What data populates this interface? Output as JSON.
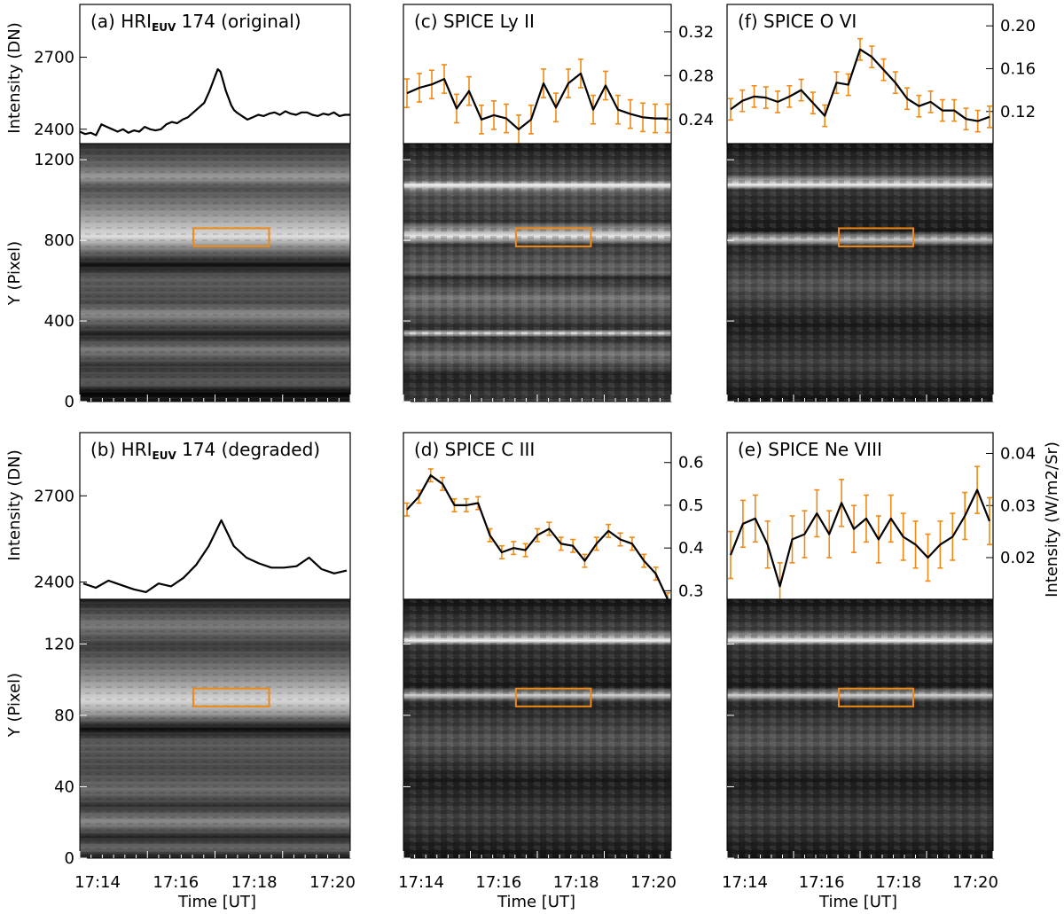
{
  "colors": {
    "line": "#000000",
    "error": "#f08a14",
    "box": "#f08a14",
    "frame": "#000000"
  },
  "labels": {
    "intensity_dn": "Intensity (DN)",
    "y_pixel": "Y (Pixel)",
    "time_ut": "Time [UT]",
    "intensity_si": "Intensity (W/m2/Sr)"
  },
  "time_ticks": [
    "17:14",
    "17:16",
    "17:18",
    "17:20"
  ],
  "chart_data": [
    {
      "id": "a",
      "type": "line",
      "title_pre": "(a) HRI",
      "title_sub": "EUV",
      "title_post": " 174 (original)",
      "ylim": [
        2340,
        2920
      ],
      "yticks": [
        "2400",
        "2700"
      ],
      "x": [
        0.0,
        0.02,
        0.04,
        0.06,
        0.08,
        0.1,
        0.12,
        0.14,
        0.16,
        0.18,
        0.2,
        0.22,
        0.24,
        0.26,
        0.28,
        0.3,
        0.32,
        0.34,
        0.36,
        0.38,
        0.4,
        0.42,
        0.44,
        0.46,
        0.48,
        0.5,
        0.51,
        0.52,
        0.53,
        0.54,
        0.55,
        0.56,
        0.57,
        0.58,
        0.6,
        0.62,
        0.64,
        0.66,
        0.68,
        0.7,
        0.72,
        0.74,
        0.76,
        0.78,
        0.8,
        0.82,
        0.84,
        0.86,
        0.88,
        0.9,
        0.92,
        0.94,
        0.96,
        0.98,
        1.0
      ],
      "values": [
        2390,
        2380,
        2385,
        2375,
        2420,
        2410,
        2400,
        2390,
        2400,
        2385,
        2395,
        2390,
        2410,
        2400,
        2395,
        2400,
        2420,
        2430,
        2425,
        2440,
        2450,
        2470,
        2490,
        2510,
        2560,
        2620,
        2650,
        2640,
        2600,
        2560,
        2530,
        2500,
        2480,
        2470,
        2455,
        2440,
        2450,
        2460,
        2455,
        2465,
        2470,
        2460,
        2475,
        2465,
        2460,
        2470,
        2470,
        2460,
        2455,
        2465,
        2460,
        2470,
        2455,
        2460,
        2460
      ]
    },
    {
      "id": "c",
      "type": "line",
      "errorbars": true,
      "yaxis_side": "right",
      "title": "(c) SPICE Ly II",
      "ylim": [
        0.218,
        0.345
      ],
      "yticks": [
        "0.24",
        "0.28",
        "0.32"
      ],
      "values": [
        0.264,
        0.269,
        0.272,
        0.277,
        0.25,
        0.266,
        0.24,
        0.244,
        0.241,
        0.231,
        0.24,
        0.273,
        0.251,
        0.273,
        0.282,
        0.249,
        0.271,
        0.249,
        0.245,
        0.242,
        0.241,
        0.241
      ],
      "errors": [
        0.013,
        0.013,
        0.013,
        0.013,
        0.013,
        0.013,
        0.013,
        0.013,
        0.013,
        0.013,
        0.013,
        0.013,
        0.013,
        0.013,
        0.013,
        0.013,
        0.013,
        0.013,
        0.013,
        0.013,
        0.013,
        0.013
      ]
    },
    {
      "id": "f",
      "type": "line",
      "errorbars": true,
      "yaxis_side": "right",
      "title": "(f) SPICE O VI",
      "ylim": [
        0.09,
        0.22
      ],
      "yticks": [
        "0.12",
        "0.16",
        "0.20"
      ],
      "values": [
        0.122,
        0.13,
        0.134,
        0.133,
        0.129,
        0.134,
        0.14,
        0.128,
        0.116,
        0.147,
        0.145,
        0.178,
        0.171,
        0.159,
        0.147,
        0.132,
        0.125,
        0.129,
        0.121,
        0.121,
        0.113,
        0.111,
        0.115
      ],
      "errors": [
        0.01,
        0.01,
        0.01,
        0.01,
        0.01,
        0.01,
        0.01,
        0.01,
        0.01,
        0.01,
        0.01,
        0.01,
        0.01,
        0.01,
        0.01,
        0.01,
        0.01,
        0.01,
        0.01,
        0.01,
        0.01,
        0.01,
        0.01
      ]
    },
    {
      "id": "b",
      "type": "line",
      "title_pre": "(b) HRI",
      "title_sub": "EUV",
      "title_post": " 174 (degraded)",
      "ylim": [
        2340,
        2920
      ],
      "yticks": [
        "2400",
        "2700"
      ],
      "values": [
        2395,
        2380,
        2405,
        2390,
        2375,
        2365,
        2395,
        2385,
        2415,
        2460,
        2525,
        2615,
        2525,
        2485,
        2465,
        2450,
        2450,
        2455,
        2485,
        2445,
        2430,
        2440
      ]
    },
    {
      "id": "d",
      "type": "line",
      "errorbars": true,
      "yaxis_side": "right",
      "title": "(d) SPICE C III",
      "ylim": [
        0.28,
        0.67
      ],
      "yticks": [
        "0.3",
        "0.4",
        "0.5",
        "0.6"
      ],
      "values": [
        0.49,
        0.52,
        0.57,
        0.55,
        0.5,
        0.5,
        0.505,
        0.43,
        0.39,
        0.4,
        0.395,
        0.43,
        0.445,
        0.41,
        0.405,
        0.37,
        0.41,
        0.44,
        0.42,
        0.41,
        0.37,
        0.34,
        0.28
      ],
      "errors": [
        0.015,
        0.015,
        0.015,
        0.015,
        0.015,
        0.015,
        0.015,
        0.015,
        0.015,
        0.015,
        0.015,
        0.015,
        0.015,
        0.015,
        0.015,
        0.015,
        0.015,
        0.015,
        0.015,
        0.015,
        0.015,
        0.015,
        0.015
      ]
    },
    {
      "id": "e",
      "type": "line",
      "errorbars": true,
      "yaxis_side": "right",
      "title": "(e) SPICE Ne VIII",
      "ylim": [
        0.012,
        0.044
      ],
      "yticks": [
        "0.02",
        "0.03",
        "0.04"
      ],
      "values": [
        0.0205,
        0.0265,
        0.0275,
        0.0225,
        0.0145,
        0.0235,
        0.0245,
        0.0285,
        0.0245,
        0.0305,
        0.0255,
        0.0275,
        0.0235,
        0.0275,
        0.024,
        0.0225,
        0.02,
        0.0225,
        0.024,
        0.028,
        0.033,
        0.027
      ],
      "errors": [
        0.0045,
        0.0045,
        0.0045,
        0.0045,
        0.0045,
        0.0045,
        0.0045,
        0.0045,
        0.0045,
        0.0045,
        0.0045,
        0.0045,
        0.0045,
        0.0045,
        0.0045,
        0.0045,
        0.0045,
        0.0045,
        0.0045,
        0.0045,
        0.0045,
        0.0045
      ]
    },
    {
      "id": "img_top",
      "type": "heatmap",
      "rows": "a,c,f",
      "ylim": [
        0,
        1280
      ],
      "yticks": [
        "0",
        "400",
        "800",
        "1200"
      ],
      "highlight_box_y": [
        770,
        860
      ]
    },
    {
      "id": "img_bot",
      "type": "heatmap",
      "rows": "b,d,e",
      "ylim": [
        0,
        145
      ],
      "yticks": [
        "0",
        "40",
        "80",
        "120"
      ],
      "highlight_box_y": [
        85,
        95
      ]
    }
  ]
}
